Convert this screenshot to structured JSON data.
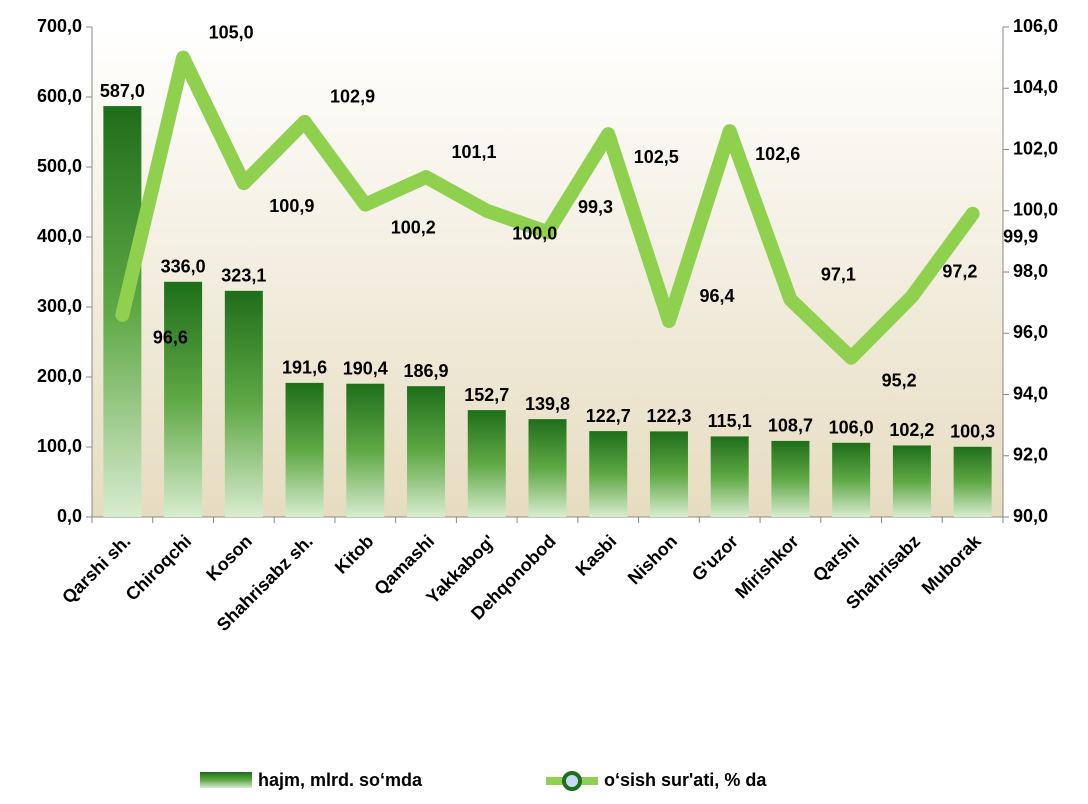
{
  "chart_data": {
    "type": "bar-line",
    "categories": [
      "Qarshi sh.",
      "Chiroqchi",
      "Koson",
      "Shahrisabz sh.",
      "Kitob",
      "Qamashi",
      "Yakkabog'",
      "Dehqonobod",
      "Kasbi",
      "Nishon",
      "G'uzor",
      "Mirishkor",
      "Qarshi",
      "Shahrisabz",
      "Muborak"
    ],
    "series": [
      {
        "name": "hajm, mlrd. so‘mda",
        "type": "bar",
        "color": "#1e7a1e",
        "values": [
          587.0,
          336.0,
          323.1,
          191.6,
          190.4,
          186.9,
          152.7,
          139.8,
          122.7,
          122.3,
          115.1,
          108.7,
          106.0,
          102.2,
          100.3
        ],
        "value_labels": [
          "587,0",
          "336,0",
          "323,1",
          "191,6",
          "190,4",
          "186,9",
          "152,7",
          "139,8",
          "122,7",
          "122,3",
          "115,1",
          "108,7",
          "106,0",
          "102,2",
          "100,3"
        ]
      },
      {
        "name": "o‘sish sur'ati, % da",
        "type": "line",
        "axis": "y2",
        "color": "#8fd14f",
        "values": [
          96.6,
          105.0,
          100.9,
          102.9,
          100.2,
          101.1,
          100.0,
          99.3,
          102.5,
          96.4,
          102.6,
          97.1,
          95.2,
          97.2,
          99.9
        ],
        "value_labels": [
          "96,6",
          "105,0",
          "100,9",
          "102,9",
          "100,2",
          "101,1",
          "100,0",
          "99,3",
          "102,5",
          "96,4",
          "102,6",
          "97,1",
          "95,2",
          "97,2",
          "99,9"
        ]
      }
    ],
    "ylim": [
      0,
      700
    ],
    "yticks": [
      {
        "value": 0,
        "label": "0,0"
      },
      {
        "value": 100,
        "label": "100,0"
      },
      {
        "value": 200,
        "label": "200,0"
      },
      {
        "value": 300,
        "label": "300,0"
      },
      {
        "value": 400,
        "label": "400,0"
      },
      {
        "value": 500,
        "label": "500,0"
      },
      {
        "value": 600,
        "label": "600,0"
      },
      {
        "value": 700,
        "label": "700,0"
      }
    ],
    "y2lim": [
      90,
      106
    ],
    "y2ticks": [
      {
        "value": 90,
        "label": "90,0"
      },
      {
        "value": 92,
        "label": "92,0"
      },
      {
        "value": 94,
        "label": "94,0"
      },
      {
        "value": 96,
        "label": "96,0"
      },
      {
        "value": 98,
        "label": "98,0"
      },
      {
        "value": 100,
        "label": "100,0"
      },
      {
        "value": 102,
        "label": "102,0"
      },
      {
        "value": 104,
        "label": "104,0"
      },
      {
        "value": 106,
        "label": "106,0"
      }
    ],
    "legend": "bottom"
  }
}
